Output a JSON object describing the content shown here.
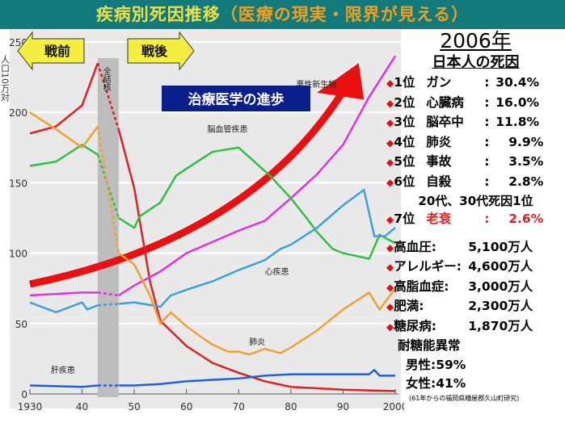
{
  "title": {
    "main": "疾病別死因推移",
    "sub": "（医療の現実・限界が見える）"
  },
  "chart_data": {
    "type": "line",
    "title": "疾病別死因推移",
    "ylabel": "人口10万対",
    "xlim": [
      1930,
      2001
    ],
    "ylim": [
      0,
      250
    ],
    "xticks": [
      {
        "v": 1930,
        "l": "1930"
      },
      {
        "v": 1940,
        "l": "40"
      },
      {
        "v": 1950,
        "l": "50"
      },
      {
        "v": 1960,
        "l": "60"
      },
      {
        "v": 1970,
        "l": "70"
      },
      {
        "v": 1980,
        "l": "80"
      },
      {
        "v": 1990,
        "l": "90"
      },
      {
        "v": 2000,
        "l": "2000"
      }
    ],
    "yticks": [
      0,
      50,
      100,
      150,
      200,
      250
    ],
    "war_gap": [
      1943,
      1947
    ],
    "series": [
      {
        "name": "全結核",
        "color": "#e02020",
        "points": [
          [
            1930,
            185
          ],
          [
            1935,
            190
          ],
          [
            1940,
            205
          ],
          [
            1943,
            235
          ],
          [
            1947,
            188
          ],
          [
            1950,
            146
          ],
          [
            1953,
            80
          ],
          [
            1955,
            52
          ],
          [
            1960,
            34
          ],
          [
            1965,
            22
          ],
          [
            1970,
            15
          ],
          [
            1975,
            9
          ],
          [
            1980,
            5
          ],
          [
            1990,
            3
          ],
          [
            2000,
            2
          ]
        ]
      },
      {
        "name": "悪性新生物",
        "color": "#e030e0",
        "points": [
          [
            1930,
            70
          ],
          [
            1935,
            71
          ],
          [
            1940,
            72
          ],
          [
            1943,
            72
          ],
          [
            1947,
            70
          ],
          [
            1950,
            77
          ],
          [
            1955,
            87
          ],
          [
            1960,
            100
          ],
          [
            1965,
            108
          ],
          [
            1970,
            116
          ],
          [
            1975,
            123
          ],
          [
            1980,
            139
          ],
          [
            1985,
            156
          ],
          [
            1990,
            177
          ],
          [
            1995,
            211
          ],
          [
            2000,
            240
          ]
        ]
      },
      {
        "name": "脳血管疾患",
        "color": "#30c040",
        "points": [
          [
            1930,
            162
          ],
          [
            1935,
            165
          ],
          [
            1940,
            177
          ],
          [
            1943,
            170
          ],
          [
            1947,
            125
          ],
          [
            1950,
            118
          ],
          [
            1951,
            126
          ],
          [
            1955,
            136
          ],
          [
            1958,
            155
          ],
          [
            1960,
            160
          ],
          [
            1965,
            172
          ],
          [
            1970,
            175
          ],
          [
            1973,
            165
          ],
          [
            1976,
            155
          ],
          [
            1980,
            139
          ],
          [
            1983,
            125
          ],
          [
            1985,
            115
          ],
          [
            1988,
            103
          ],
          [
            1990,
            100
          ],
          [
            1995,
            96
          ],
          [
            1997,
            113
          ],
          [
            2000,
            107
          ]
        ]
      },
      {
        "name": "心疾患",
        "color": "#3aa0e0",
        "points": [
          [
            1930,
            65
          ],
          [
            1935,
            58
          ],
          [
            1940,
            65
          ],
          [
            1941,
            60
          ],
          [
            1943,
            63
          ],
          [
            1947,
            64
          ],
          [
            1950,
            65
          ],
          [
            1955,
            62
          ],
          [
            1957,
            70
          ],
          [
            1960,
            74
          ],
          [
            1965,
            80
          ],
          [
            1970,
            88
          ],
          [
            1975,
            95
          ],
          [
            1978,
            103
          ],
          [
            1980,
            106
          ],
          [
            1985,
            118
          ],
          [
            1990,
            134
          ],
          [
            1994,
            145
          ],
          [
            1996,
            112
          ],
          [
            1998,
            112
          ],
          [
            2000,
            118
          ]
        ]
      },
      {
        "name": "肺炎",
        "color": "#f0a030",
        "points": [
          [
            1930,
            200
          ],
          [
            1935,
            188
          ],
          [
            1940,
            175
          ],
          [
            1943,
            190
          ],
          [
            1947,
            100
          ],
          [
            1950,
            92
          ],
          [
            1953,
            70
          ],
          [
            1955,
            50
          ],
          [
            1957,
            58
          ],
          [
            1960,
            48
          ],
          [
            1963,
            40
          ],
          [
            1965,
            35
          ],
          [
            1968,
            30
          ],
          [
            1970,
            30
          ],
          [
            1972,
            28
          ],
          [
            1975,
            32
          ],
          [
            1978,
            29
          ],
          [
            1980,
            33
          ],
          [
            1985,
            45
          ],
          [
            1990,
            60
          ],
          [
            1995,
            72
          ],
          [
            1997,
            60
          ],
          [
            2000,
            75
          ]
        ]
      },
      {
        "name": "肝疾患",
        "color": "#2060d8",
        "points": [
          [
            1930,
            6
          ],
          [
            1940,
            5
          ],
          [
            1943,
            6
          ],
          [
            1947,
            6
          ],
          [
            1950,
            6
          ],
          [
            1955,
            7
          ],
          [
            1960,
            9
          ],
          [
            1965,
            10
          ],
          [
            1970,
            11
          ],
          [
            1975,
            13
          ],
          [
            1980,
            14
          ],
          [
            1990,
            14
          ],
          [
            1995,
            14
          ],
          [
            1996,
            17
          ],
          [
            1997,
            13
          ],
          [
            2000,
            13
          ]
        ]
      }
    ],
    "annotations": {
      "prewar": "戦前",
      "postwar": "戦後",
      "progress": "治療医学の進歩"
    }
  },
  "right": {
    "year": "2006年",
    "heading": "日本人の死因",
    "ranks": [
      {
        "rank": "1位",
        "name": "ガン",
        "sep": ":",
        "value": "30.4%"
      },
      {
        "rank": "2位",
        "name": "心臓病",
        "sep": ":",
        "value": "16.0%"
      },
      {
        "rank": "3位",
        "name": "脳卒中",
        "sep": ":",
        "value": "11.8%"
      },
      {
        "rank": "4位",
        "name": "肺炎",
        "sep": ":",
        "value": "9.9%"
      },
      {
        "rank": "5位",
        "name": "事故",
        "sep": ":",
        "value": "3.5%"
      },
      {
        "rank": "6位",
        "name": "自殺",
        "sep": ":",
        "value": "2.8%"
      }
    ],
    "note": "20代、30代死因1位",
    "rank7": {
      "rank": "7位",
      "name": "老衰",
      "sep": ":",
      "value": "2.6%"
    },
    "stats": [
      {
        "name": "高血圧:",
        "value": "5,100万人"
      },
      {
        "name": "アレルギー:",
        "value": "4,600万人"
      },
      {
        "name": "高脂血症:",
        "value": "3,000万人"
      },
      {
        "name": "肥満:",
        "value": "2,300万人"
      },
      {
        "name": "糖尿病:",
        "value": "1,870万人"
      }
    ],
    "igt": "耐糖能異常",
    "male": "男性:59%",
    "female": "女性:41%",
    "footnote": "(61年からの福岡県糟屋郡久山町研究)"
  }
}
